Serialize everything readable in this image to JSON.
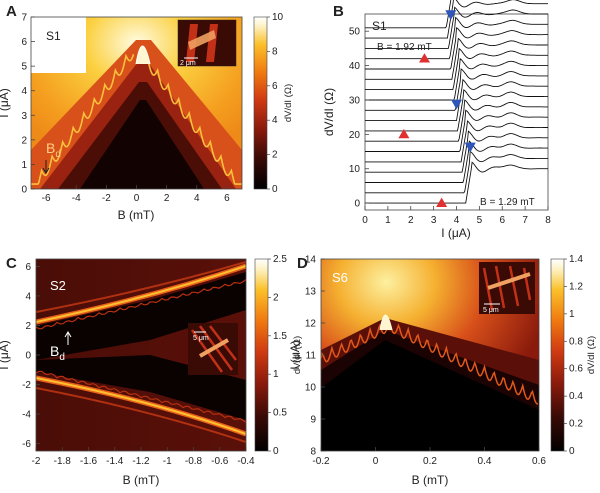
{
  "chart_data": [
    {
      "panel": "A",
      "type": "heatmap",
      "sample_label": "S1",
      "xlabel": "B (mT)",
      "ylabel": "I (μA)",
      "xlim": [
        -7,
        7
      ],
      "ylim": [
        0,
        7
      ],
      "xticks": [
        "-6",
        "-4",
        "-2",
        "0",
        "2",
        "4",
        "6"
      ],
      "yticks": [
        "0",
        "1",
        "2",
        "3",
        "4",
        "5",
        "6",
        "7"
      ],
      "colorbar": {
        "label": "dV/dI (Ω)",
        "range": [
          0,
          10
        ],
        "ticks": [
          "0",
          "2",
          "4",
          "6",
          "8",
          "10"
        ]
      },
      "annotation": "B",
      "annotation_sub": "d",
      "inset_scale": "2 μm",
      "peak_critical_current_uA": 6.0,
      "peak_field_mT": 0
    },
    {
      "panel": "B",
      "type": "line",
      "sample_label": "S1",
      "xlabel": "I (μA)",
      "ylabel": "dV/dI (Ω)",
      "xlim": [
        0,
        8
      ],
      "ylim": [
        -2,
        55
      ],
      "xticks": [
        "0",
        "1",
        "2",
        "3",
        "4",
        "5",
        "6",
        "7",
        "8"
      ],
      "yticks": [
        "0",
        "10",
        "20",
        "30",
        "40",
        "50"
      ],
      "trace_count": 18,
      "top_label": "B = 1.92 mT",
      "bottom_label": "B = 1.29 mT",
      "switching_current_top_uA": 3.7,
      "switching_current_bottom_uA": 4.55,
      "markers": [
        {
          "shape": "down-triangle",
          "color": "#2e56b8",
          "x": 3.75,
          "y": 54.5
        },
        {
          "shape": "down-triangle",
          "color": "#2e56b8",
          "x": 4.0,
          "y": 28.5
        },
        {
          "shape": "down-triangle",
          "color": "#2e56b8",
          "x": 4.6,
          "y": 16.0
        },
        {
          "shape": "up-triangle",
          "color": "#e03030",
          "x": 2.6,
          "y": 42.0
        },
        {
          "shape": "up-triangle",
          "color": "#e03030",
          "x": 1.7,
          "y": 20.0
        },
        {
          "shape": "up-triangle",
          "color": "#e03030",
          "x": 3.35,
          "y": 0.0
        }
      ]
    },
    {
      "panel": "C",
      "type": "heatmap",
      "sample_label": "S2",
      "xlabel": "B (mT)",
      "ylabel": "I (μA)",
      "xlim": [
        -2,
        -0.4
      ],
      "ylim": [
        -6.5,
        6.5
      ],
      "xticks": [
        "-2",
        "-1.8",
        "-1.6",
        "-1.4",
        "-1.2",
        "-1",
        "-0.8",
        "-0.6",
        "-0.4"
      ],
      "yticks": [
        "6",
        "4",
        "2",
        "0",
        "-2",
        "-4",
        "-6"
      ],
      "colorbar": {
        "label": "dV/dI (Ω)",
        "range": [
          0,
          2.5
        ],
        "ticks": [
          "0",
          "0.5",
          "1",
          "1.5",
          "2",
          "2.5"
        ]
      },
      "annotation": "B",
      "annotation_sub": "d",
      "inset_scale": "5 μm",
      "upper_band_uA": {
        "at_-2mT": 2.0,
        "at_-0.4mT": 5.5
      },
      "lower_band_uA": {
        "at_-2mT": -2.0,
        "at_-0.4mT": -5.8
      }
    },
    {
      "panel": "D",
      "type": "heatmap",
      "sample_label": "S6",
      "xlabel": "B (mT)",
      "ylabel": "I (μA)",
      "xlim": [
        -0.2,
        0.6
      ],
      "ylim": [
        8,
        14
      ],
      "xticks": [
        "-0.2",
        "0",
        "0.2",
        "0.4",
        "0.6"
      ],
      "yticks": [
        "8",
        "9",
        "10",
        "11",
        "12",
        "13",
        "14"
      ],
      "colorbar": {
        "label": "dV/dI (Ω)",
        "range": [
          0,
          1.4
        ],
        "ticks": [
          "0",
          "0.2",
          "0.4",
          "0.6",
          "0.8",
          "1",
          "1.2",
          "1.4"
        ]
      },
      "inset_scale": "5 μm",
      "peak_critical_current_uA": 12.1,
      "peak_field_mT": 0.05
    }
  ],
  "colors": {
    "c0": "#000000",
    "c1": "#3a0a05",
    "c2": "#8a1a0c",
    "c3": "#d03a12",
    "c4": "#f07a10",
    "c5": "#fbc02a",
    "c6": "#fdf3c8",
    "c7": "#ffffff",
    "blue_marker": "#2e56b8",
    "red_marker": "#e03030"
  }
}
